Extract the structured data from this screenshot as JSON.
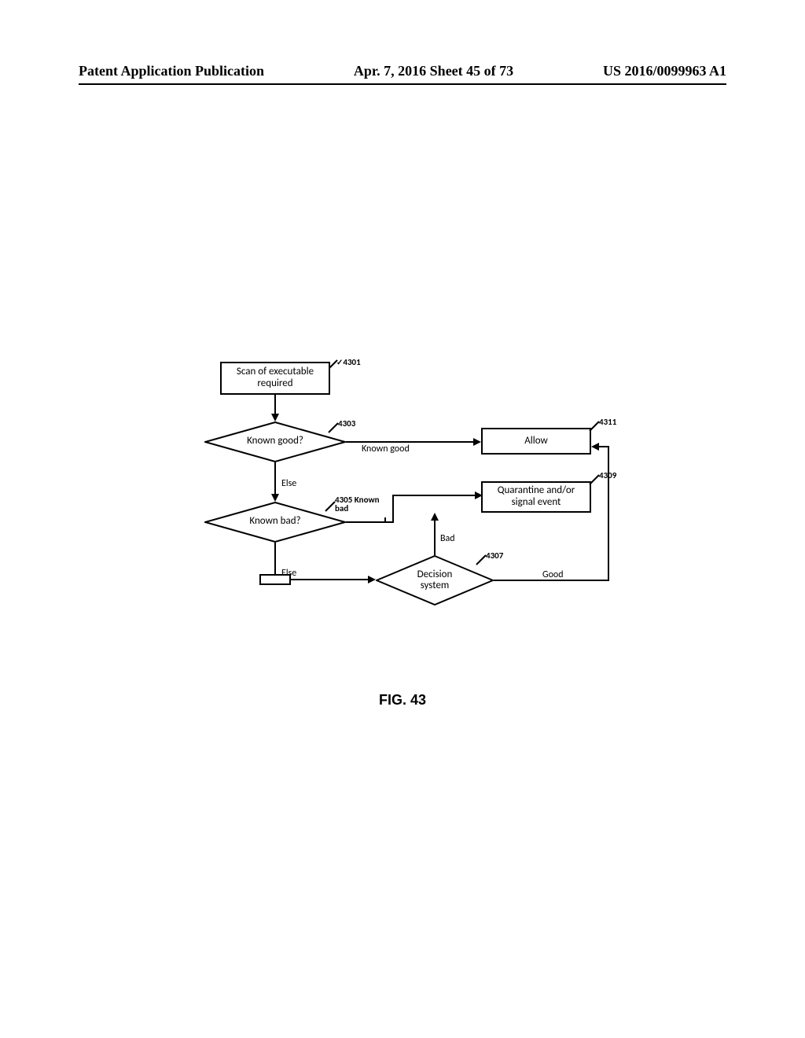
{
  "header": {
    "left": "Patent Application Publication",
    "mid": "Apr. 7, 2016  Sheet 45 of 73",
    "right": "US 2016/0099963 A1"
  },
  "figure_caption": "FIG. 43",
  "nodes": {
    "n4301": {
      "label": "Scan of executable\nrequired",
      "ref": "4301"
    },
    "n4303": {
      "label": "Known good?",
      "ref": "4303"
    },
    "n4305": {
      "label": "Known bad?",
      "ref": "4305 Known\nbad"
    },
    "n4307": {
      "label": "Decision\nsystem",
      "ref": "4307"
    },
    "n4309": {
      "label": "Quarantine and/or\nsignal event",
      "ref": "4309"
    },
    "n4311": {
      "label": "Allow",
      "ref": "4311"
    }
  },
  "edges": {
    "e_4303_right": "Known good",
    "e_4303_down": "Else",
    "e_4305_down": "Else",
    "e_4307_left": "Bad",
    "e_4307_right": "Good"
  },
  "style": {
    "stroke": "#000000",
    "bg": "#ffffff",
    "font_family": "Calibri, Arial, sans-serif",
    "node_fontsize": 13,
    "edge_fontsize": 12,
    "ref_fontsize": 11,
    "line_width": 2
  }
}
